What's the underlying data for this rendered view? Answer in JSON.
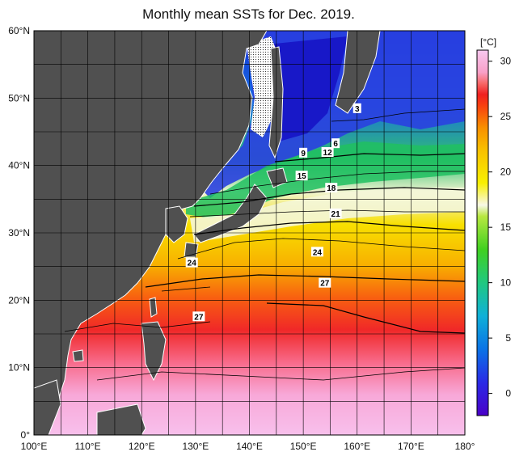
{
  "title": "Monthly mean SSTs for Dec. 2019.",
  "colorbar": {
    "unit": "[°C]",
    "ticks": [
      "30",
      "25",
      "20",
      "15",
      "10",
      "5",
      "0"
    ],
    "tick_values": [
      30,
      25,
      20,
      15,
      10,
      5,
      0
    ],
    "range": [
      -2,
      31
    ],
    "stops": [
      {
        "v": -2,
        "c": "#4a00c8"
      },
      {
        "v": 1,
        "c": "#2a2ae6"
      },
      {
        "v": 4,
        "c": "#0a73e6"
      },
      {
        "v": 7,
        "c": "#10b0d8"
      },
      {
        "v": 10,
        "c": "#20c880"
      },
      {
        "v": 13,
        "c": "#40d020"
      },
      {
        "v": 16,
        "c": "#b8e840"
      },
      {
        "v": 17,
        "c": "#f8f8e8"
      },
      {
        "v": 19,
        "c": "#f8f000"
      },
      {
        "v": 22,
        "c": "#f8c000"
      },
      {
        "v": 24,
        "c": "#f89000"
      },
      {
        "v": 26,
        "c": "#f84010"
      },
      {
        "v": 27,
        "c": "#f02020"
      },
      {
        "v": 28,
        "c": "#f86868"
      },
      {
        "v": 29,
        "c": "#f8a0c8"
      },
      {
        "v": 31,
        "c": "#f8c8f0"
      }
    ]
  },
  "axes": {
    "lon_labels": [
      "100°E",
      "110°E",
      "120°E",
      "130°E",
      "140°E",
      "150°E",
      "160°E",
      "170°E",
      "180°"
    ],
    "lon_values": [
      100,
      110,
      120,
      130,
      140,
      150,
      160,
      170,
      180
    ],
    "lat_labels": [
      "60°N",
      "50°N",
      "40°N",
      "30°N",
      "20°N",
      "10°N",
      "0°"
    ],
    "lat_values": [
      60,
      50,
      40,
      30,
      20,
      10,
      0
    ],
    "lon_range": [
      100,
      180
    ],
    "lat_range": [
      0,
      60
    ]
  },
  "contour_labels": [
    {
      "text": "3",
      "lon": 160,
      "lat": 48.5
    },
    {
      "text": "6",
      "lon": 156,
      "lat": 43.3
    },
    {
      "text": "9",
      "lon": 150,
      "lat": 41.9
    },
    {
      "text": "12",
      "lon": 154.5,
      "lat": 42.0
    },
    {
      "text": "15",
      "lon": 149.7,
      "lat": 38.5
    },
    {
      "text": "18",
      "lon": 155.2,
      "lat": 36.7
    },
    {
      "text": "21",
      "lon": 156.0,
      "lat": 32.9
    },
    {
      "text": "24",
      "lon": 152.6,
      "lat": 27.2
    },
    {
      "text": "24",
      "lon": 129.3,
      "lat": 25.6
    },
    {
      "text": "27",
      "lon": 154.0,
      "lat": 22.6
    },
    {
      "text": "27",
      "lon": 130.6,
      "lat": 17.6
    }
  ],
  "colors": {
    "land": "#505050",
    "coast": "#ffffff",
    "grid": "#000000",
    "sea_ice": "#ffffff"
  }
}
